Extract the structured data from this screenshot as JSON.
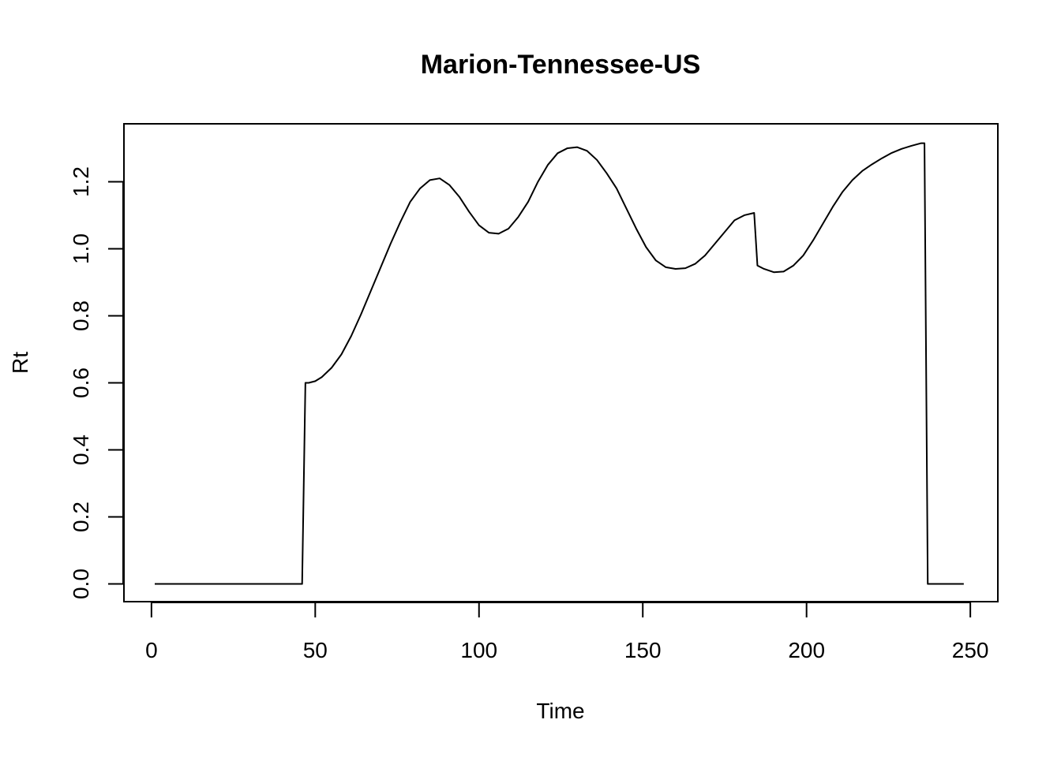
{
  "chart_data": {
    "type": "line",
    "title": "Marion-Tennessee-US",
    "xlabel": "Time",
    "ylabel": "Rt",
    "xlim": [
      -8.4,
      258.4
    ],
    "ylim": [
      -0.0528,
      1.3728
    ],
    "xticks": [
      "0",
      "50",
      "100",
      "150",
      "200",
      "250"
    ],
    "yticks": [
      "0.0",
      "0.2",
      "0.4",
      "0.6",
      "0.8",
      "1.0",
      "1.2"
    ],
    "grid": false,
    "legend": "none",
    "line_color": "#000000",
    "series": [
      {
        "x": [
          1,
          46,
          47,
          48,
          50,
          52,
          55,
          58,
          61,
          64,
          67,
          70,
          73,
          76,
          79,
          82,
          85,
          88,
          91,
          94,
          97,
          100,
          103,
          106,
          109,
          112,
          115,
          118,
          121,
          124,
          127,
          130,
          133,
          136,
          139,
          142,
          145,
          148,
          151,
          154,
          157,
          160,
          163,
          166,
          169,
          172,
          175,
          178,
          181,
          184,
          185,
          187,
          190,
          193,
          196,
          199,
          202,
          205,
          208,
          211,
          214,
          217,
          220,
          223,
          226,
          229,
          232,
          235,
          236,
          237,
          240,
          248
        ],
        "y": [
          0.0,
          0.0,
          0.6,
          0.6,
          0.605,
          0.617,
          0.645,
          0.685,
          0.74,
          0.805,
          0.875,
          0.945,
          1.015,
          1.08,
          1.14,
          1.18,
          1.205,
          1.21,
          1.19,
          1.155,
          1.11,
          1.07,
          1.048,
          1.045,
          1.06,
          1.095,
          1.14,
          1.2,
          1.25,
          1.285,
          1.3,
          1.303,
          1.292,
          1.265,
          1.225,
          1.18,
          1.12,
          1.06,
          1.005,
          0.965,
          0.945,
          0.94,
          0.942,
          0.955,
          0.98,
          1.015,
          1.05,
          1.085,
          1.1,
          1.107,
          0.95,
          0.94,
          0.93,
          0.932,
          0.95,
          0.98,
          1.025,
          1.075,
          1.125,
          1.17,
          1.205,
          1.232,
          1.252,
          1.27,
          1.286,
          1.298,
          1.307,
          1.315,
          1.315,
          0.0,
          0.0,
          0.0
        ]
      }
    ]
  }
}
